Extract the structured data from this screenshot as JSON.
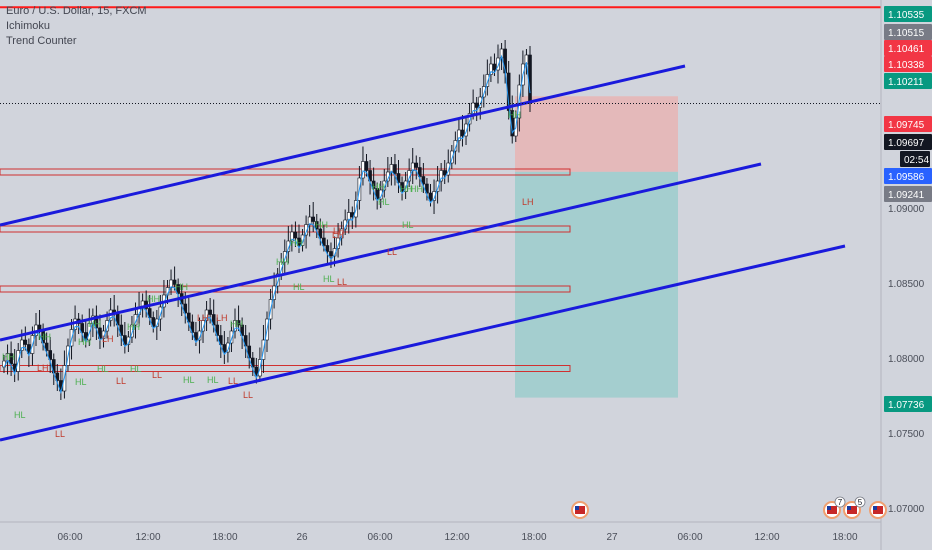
{
  "header": {
    "title": "Euro / U.S. Dollar, 15, FXCM",
    "indicators": [
      "Ichimoku",
      "Trend Counter"
    ]
  },
  "colors": {
    "background": "#d1d4dc",
    "channel": "#1a1adc",
    "resistance": "#ff1a1a",
    "zone_border": "#d03030",
    "up_candle": "#ffffff",
    "down_candle": "#131722",
    "kijun": "#2196f3",
    "stop_zone": "#e8b4b4",
    "target_zone": "#9ccccc",
    "label_green": "#089981",
    "label_red": "#f23645",
    "label_blue": "#2962ff",
    "label_black": "#131722",
    "label_gray": "#787b86",
    "pattern_high": "#4caf50",
    "pattern_low": "#c0392b"
  },
  "chart_data": {
    "type": "candlestick",
    "symbol": "EURUSD",
    "timeframe": "15",
    "x_ticks": [
      "06:00",
      "12:00",
      "18:00",
      "26",
      "06:00",
      "12:00",
      "18:00",
      "27",
      "06:00",
      "12:00",
      "18:00"
    ],
    "y_ticks": [
      "1.07000",
      "1.07500",
      "1.08000",
      "1.08500",
      "1.09000"
    ],
    "ylim": [
      1.0683,
      1.1063
    ],
    "price_labels": [
      {
        "text": "1.10535",
        "kind": "green"
      },
      {
        "text": "1.10515",
        "kind": "gray"
      },
      {
        "text": "1.10461",
        "kind": "red"
      },
      {
        "text": "1.10338",
        "kind": "red"
      },
      {
        "text": "1.10211",
        "kind": "green"
      },
      {
        "text": "1.09745",
        "kind": "red"
      },
      {
        "text": "1.09697",
        "kind": "black"
      },
      {
        "text": "02:54",
        "kind": "countdown"
      },
      {
        "text": "1.09586",
        "kind": "blue"
      },
      {
        "text": "1.09241",
        "kind": "gray"
      },
      {
        "text": "1.07736",
        "kind": "green"
      }
    ],
    "horizontal_lines": [
      1.10515,
      1.10338
    ],
    "current_price": 1.09697,
    "support_zones": [
      1.0924,
      1.0886,
      1.0846,
      1.0793
    ],
    "channel_lines": [
      {
        "x1": 1.0,
        "p1": 1.0918,
        "x2": 685,
        "p2": 1.1031
      },
      {
        "x1": 1.0,
        "p1": 1.0825,
        "x2": 761,
        "p2": 1.0963
      },
      {
        "x1": 1.0,
        "p1": 1.0758,
        "x2": 845,
        "p2": 1.0887
      }
    ],
    "position": {
      "type": "short",
      "entry": 1.09241,
      "stop": 1.09745,
      "target": 1.07736
    },
    "pattern_labels_high": [
      "HH",
      "HH",
      "HH",
      "HH",
      "HH",
      "HH",
      "HH",
      "HH",
      "HH",
      "HH",
      "HH",
      "HH",
      "HH",
      "HH",
      "HH"
    ],
    "pattern_labels_low": [
      "HL",
      "HL",
      "HL",
      "HL",
      "HL",
      "HL",
      "HL",
      "HL",
      "HL",
      "HL",
      "LL",
      "LL",
      "LL",
      "LL",
      "LL",
      "LL",
      "LL",
      "LH",
      "LH",
      "LH",
      "LH",
      "LH",
      "LH",
      "LH"
    ],
    "event_badges": [
      "7",
      "5"
    ],
    "series": [
      {
        "name": "price",
        "close": [
          1.0798,
          1.0803,
          1.0796,
          1.0791,
          1.0805,
          1.0812,
          1.0809,
          1.0803,
          1.0815,
          1.0822,
          1.0818,
          1.081,
          1.0805,
          1.0799,
          1.079,
          1.0785,
          1.0778,
          1.0795,
          1.0808,
          1.0819,
          1.0826,
          1.0823,
          1.0817,
          1.0812,
          1.0823,
          1.0828,
          1.082,
          1.0813,
          1.0818,
          1.0825,
          1.0832,
          1.083,
          1.0822,
          1.0815,
          1.0809,
          1.0814,
          1.0822,
          1.0829,
          1.0834,
          1.0838,
          1.0833,
          1.0827,
          1.0821,
          1.0826,
          1.0834,
          1.0842,
          1.0847,
          1.0852,
          1.0849,
          1.0843,
          1.0836,
          1.083,
          1.0824,
          1.0817,
          1.0812,
          1.0818,
          1.0825,
          1.0832,
          1.0829,
          1.0822,
          1.0815,
          1.0809,
          1.0804,
          1.081,
          1.0818,
          1.0825,
          1.0822,
          1.0815,
          1.0808,
          1.08,
          1.0794,
          1.0788,
          1.0799,
          1.0812,
          1.0826,
          1.0839,
          1.0848,
          1.0856,
          1.0864,
          1.0871,
          1.0878,
          1.0884,
          1.088,
          1.0875,
          1.0882,
          1.0889,
          1.0894,
          1.0891,
          1.0886,
          1.088,
          1.0875,
          1.0871,
          1.0868,
          1.0873,
          1.088,
          1.0886,
          1.0892,
          1.0897,
          1.0894,
          1.0905,
          1.092,
          1.0931,
          1.0925,
          1.0918,
          1.0913,
          1.0906,
          1.0912,
          1.0918,
          1.0924,
          1.0929,
          1.0923,
          1.0917,
          1.0911,
          1.0918,
          1.0925,
          1.093,
          1.0927,
          1.0921,
          1.0916,
          1.091,
          1.0905,
          1.0911,
          1.0918,
          1.0925,
          1.0922,
          1.093,
          1.0938,
          1.0945,
          1.0952,
          1.0948,
          1.0956,
          1.0963,
          1.097,
          1.0967,
          1.0974,
          1.0981,
          1.0989,
          1.0996,
          1.0992,
          1.1,
          1.1006,
          1.099,
          1.0965,
          1.0948,
          1.096,
          1.0982,
          1.0996,
          1.1002,
          1.097
        ]
      }
    ]
  }
}
